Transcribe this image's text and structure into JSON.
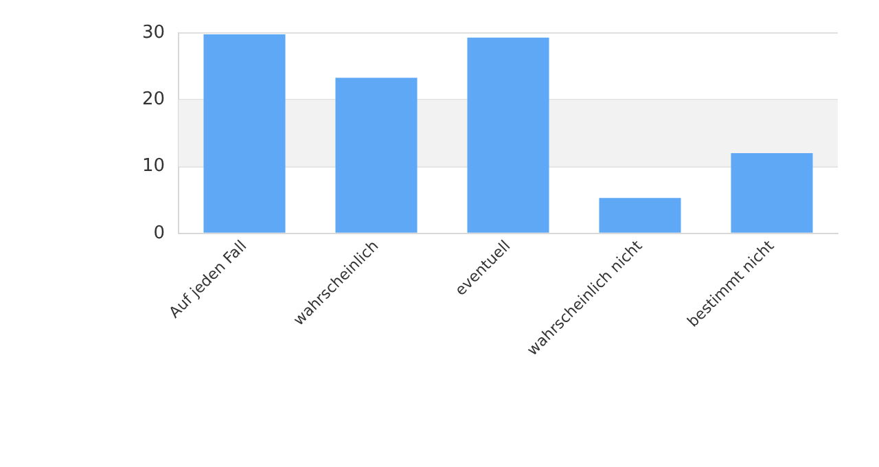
{
  "chart_data": {
    "type": "bar",
    "categories": [
      "Auf jeden Fall",
      "wahrscheinlich",
      "eventuell",
      "wahrscheinlich nicht",
      "bestimmt nicht"
    ],
    "values": [
      29.8,
      23.3,
      29.3,
      5.3,
      12
    ],
    "color": "#5fa8f5",
    "ylim": [
      0,
      30
    ],
    "yticks": [
      0,
      10,
      20,
      30
    ],
    "grid": "y",
    "legend": false,
    "bands": [
      {
        "axis": "y",
        "from": 10,
        "to": 20,
        "color": "#f2f2f2"
      }
    ]
  }
}
